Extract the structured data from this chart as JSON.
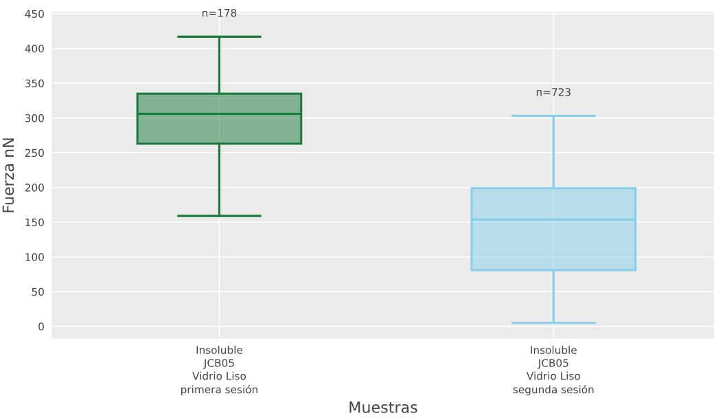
{
  "chart_data": {
    "type": "box",
    "xlabel": "Muestras",
    "ylabel": "Fuerza nN",
    "categories": [
      "Insoluble\nJCB05\nVidrio Liso\nprimera sesión",
      "Insoluble\nJCB05\nVidrio Liso\nsegunda sesión"
    ],
    "boxes": [
      {
        "low": 159,
        "q1": 263,
        "median": 306,
        "q3": 335,
        "high": 417
      },
      {
        "low": 5,
        "q1": 81,
        "median": 154,
        "q3": 199,
        "high": 303
      }
    ],
    "colors": [
      "#1a7a3a",
      "#87ceeb"
    ],
    "ylim": [
      -17,
      452
    ],
    "yticks": [
      0,
      50,
      100,
      150,
      200,
      250,
      300,
      350,
      400,
      450
    ],
    "grid": true,
    "annotations": [
      "n=178",
      "n=723"
    ]
  }
}
